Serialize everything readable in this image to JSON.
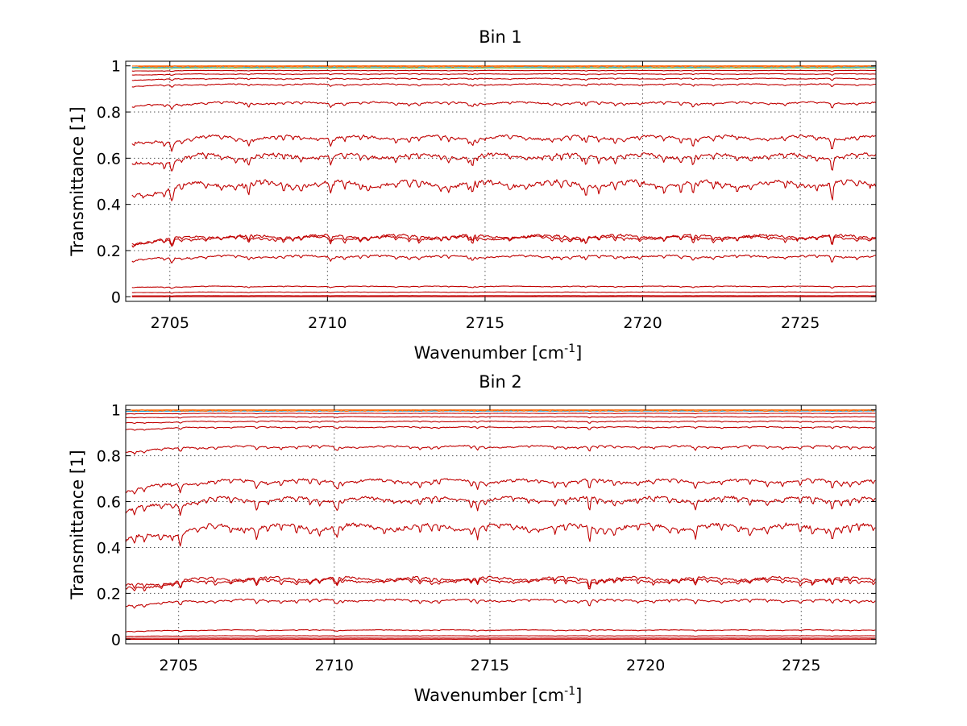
{
  "chart_data": [
    {
      "type": "line",
      "title": "Bin 1",
      "xlabel_base": "Wavenumber [cm",
      "xlabel_exp": "-1",
      "xlabel_close": "]",
      "ylabel": "Transmittance [1]",
      "xlim": [
        2703.6,
        2727.4
      ],
      "ylim": [
        -0.02,
        1.02
      ],
      "xticks": [
        2705,
        2710,
        2715,
        2720,
        2725
      ],
      "yticks": [
        0,
        0.2,
        0.4,
        0.6,
        0.8,
        1
      ],
      "ytick_labels": [
        "0",
        "0.2",
        "0.4",
        "0.6",
        "0.8",
        "1"
      ],
      "grid": true,
      "series_color": "#c00000",
      "top_cluster_colors": [
        "#ff6600",
        "#1f9bd1",
        "#7ec242",
        "#ffcc00"
      ],
      "trace_start_x": 2703.8,
      "series": [
        {
          "values_level": 1.0
        },
        {
          "values_level": 0.995
        },
        {
          "values_level": 0.99
        },
        {
          "values_level": 0.98
        },
        {
          "values_level": 0.965
        },
        {
          "values_level": 0.945
        },
        {
          "values_level": 0.92
        },
        {
          "values_level": 0.84
        },
        {
          "values_level": 0.69
        },
        {
          "values_level": 0.61
        },
        {
          "values_level": 0.49
        },
        {
          "values_level": 0.262
        },
        {
          "values_level": 0.255
        },
        {
          "values_level": 0.175
        },
        {
          "values_level": 0.045
        },
        {
          "values_level": 0.02
        },
        {
          "values_level": 0.005
        },
        {
          "values_level": 0.0
        }
      ]
    },
    {
      "type": "line",
      "title": "Bin 2",
      "xlabel_base": "Wavenumber [cm",
      "xlabel_exp": "-1",
      "xlabel_close": "]",
      "ylabel": "Transmittance [1]",
      "xlim": [
        2703.3,
        2727.4
      ],
      "ylim": [
        -0.02,
        1.02
      ],
      "xticks": [
        2705,
        2710,
        2715,
        2720,
        2725
      ],
      "yticks": [
        0,
        0.2,
        0.4,
        0.6,
        0.8,
        1
      ],
      "ytick_labels": [
        "0",
        "0.2",
        "0.4",
        "0.6",
        "0.8",
        "1"
      ],
      "grid": true,
      "series_color": "#c00000",
      "top_cluster_colors": [
        "#ff6600",
        "#1f9bd1",
        "#7ec242",
        "#ffcc00"
      ],
      "trace_start_x": 2703.3,
      "series": [
        {
          "values_level": 1.0
        },
        {
          "values_level": 0.995
        },
        {
          "values_level": 0.985
        },
        {
          "values_level": 0.97
        },
        {
          "values_level": 0.95
        },
        {
          "values_level": 0.925
        },
        {
          "values_level": 0.84
        },
        {
          "values_level": 0.69
        },
        {
          "values_level": 0.61
        },
        {
          "values_level": 0.49
        },
        {
          "values_level": 0.265
        },
        {
          "values_level": 0.255
        },
        {
          "values_level": 0.17
        },
        {
          "values_level": 0.04
        },
        {
          "values_level": 0.015
        },
        {
          "values_level": 0.005
        },
        {
          "values_level": 0.0
        }
      ]
    }
  ]
}
